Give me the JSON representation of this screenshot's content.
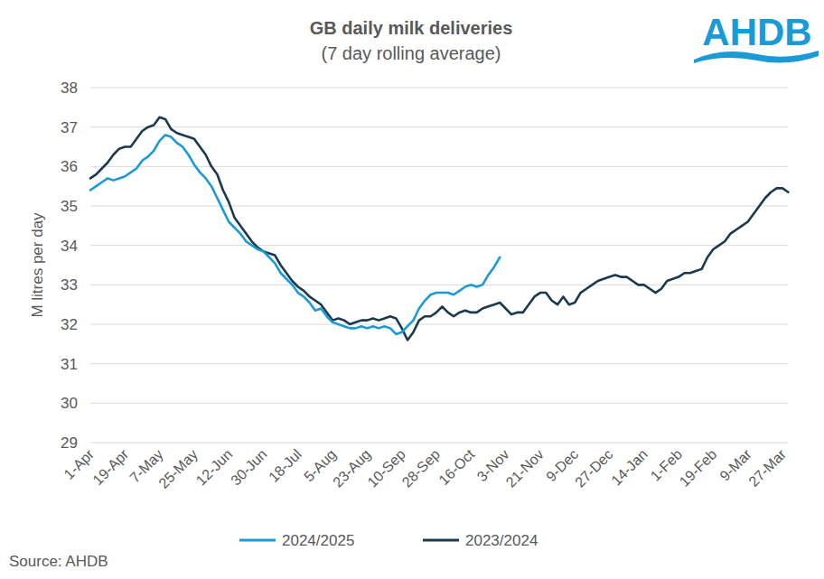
{
  "chart_data": {
    "type": "line",
    "title": "GB daily milk deliveries",
    "subtitle": "(7 day rolling average)",
    "y_label": "M litres per day",
    "source": "Source: AHDB",
    "logo": "AHDB",
    "categories": [
      "1-Apr",
      null,
      null,
      null,
      null,
      null,
      "19-Apr",
      null,
      null,
      null,
      null,
      null,
      "7-May",
      null,
      null,
      null,
      null,
      null,
      "25-May",
      null,
      null,
      null,
      null,
      null,
      "12-Jun",
      null,
      null,
      null,
      null,
      null,
      "30-Jun",
      null,
      null,
      null,
      null,
      null,
      "18-Jul",
      null,
      null,
      null,
      null,
      null,
      "5-Aug",
      null,
      null,
      null,
      null,
      null,
      "23-Aug",
      null,
      null,
      null,
      null,
      null,
      "10-Sep",
      null,
      null,
      null,
      null,
      null,
      "28-Sep",
      null,
      null,
      null,
      null,
      null,
      "16-Oct",
      null,
      null,
      null,
      null,
      null,
      "3-Nov",
      null,
      null,
      null,
      null,
      null,
      "21-Nov",
      null,
      null,
      null,
      null,
      null,
      "9-Dec",
      null,
      null,
      null,
      null,
      null,
      "27-Dec",
      null,
      null,
      null,
      null,
      null,
      "14-Jan",
      null,
      null,
      null,
      null,
      null,
      "1-Feb",
      null,
      null,
      null,
      null,
      null,
      "19-Feb",
      null,
      null,
      null,
      null,
      null,
      "9-Mar",
      null,
      null,
      null,
      null,
      null,
      "27-Mar",
      null
    ],
    "series": [
      {
        "name": "2024/2025",
        "color": "#1a9ad6",
        "values": [
          35.4,
          35.5,
          35.6,
          35.7,
          35.65,
          35.7,
          35.75,
          35.85,
          35.95,
          36.15,
          36.25,
          36.4,
          36.65,
          36.8,
          36.75,
          36.6,
          36.5,
          36.3,
          36.05,
          35.85,
          35.7,
          35.5,
          35.2,
          34.9,
          34.6,
          34.45,
          34.3,
          34.1,
          34.0,
          33.9,
          33.85,
          33.7,
          33.55,
          33.3,
          33.15,
          33.0,
          32.8,
          32.7,
          32.55,
          32.35,
          32.4,
          32.2,
          32.05,
          32.0,
          31.95,
          31.9,
          31.9,
          31.95,
          31.9,
          31.95,
          31.9,
          31.95,
          31.9,
          31.75,
          31.8,
          31.95,
          32.1,
          32.4,
          32.6,
          32.75,
          32.8,
          32.8,
          32.8,
          32.75,
          32.85,
          32.95,
          33.0,
          32.95,
          33.0,
          33.25,
          33.45,
          33.7,
          null,
          null,
          null,
          null,
          null,
          null,
          null,
          null,
          null,
          null,
          null,
          null,
          null,
          null,
          null,
          null,
          null,
          null,
          null,
          null,
          null,
          null,
          null,
          null,
          null,
          null,
          null,
          null,
          null,
          null,
          null,
          null,
          null,
          null,
          null,
          null,
          null,
          null,
          null,
          null,
          null,
          null,
          null,
          null,
          null,
          null,
          null,
          null,
          null,
          null
        ]
      },
      {
        "name": "2023/2024",
        "color": "#1b3a4e",
        "values": [
          35.7,
          35.8,
          35.95,
          36.1,
          36.3,
          36.45,
          36.5,
          36.5,
          36.7,
          36.9,
          37.0,
          37.05,
          37.25,
          37.2,
          36.95,
          36.85,
          36.8,
          36.75,
          36.7,
          36.5,
          36.3,
          36.0,
          35.8,
          35.4,
          35.1,
          34.7,
          34.5,
          34.3,
          34.1,
          33.95,
          33.85,
          33.8,
          33.75,
          33.5,
          33.3,
          33.1,
          32.95,
          32.85,
          32.7,
          32.6,
          32.5,
          32.3,
          32.1,
          32.15,
          32.1,
          32.0,
          32.05,
          32.1,
          32.1,
          32.15,
          32.1,
          32.15,
          32.2,
          32.15,
          31.9,
          31.6,
          31.8,
          32.1,
          32.2,
          32.2,
          32.3,
          32.45,
          32.3,
          32.2,
          32.3,
          32.35,
          32.3,
          32.3,
          32.4,
          32.45,
          32.5,
          32.55,
          32.4,
          32.25,
          32.3,
          32.3,
          32.5,
          32.7,
          32.8,
          32.8,
          32.6,
          32.5,
          32.7,
          32.5,
          32.55,
          32.8,
          32.9,
          33.0,
          33.1,
          33.15,
          33.2,
          33.25,
          33.2,
          33.2,
          33.1,
          33.0,
          33.0,
          32.9,
          32.8,
          32.9,
          33.1,
          33.15,
          33.2,
          33.3,
          33.3,
          33.35,
          33.4,
          33.7,
          33.9,
          34.0,
          34.1,
          34.3,
          34.4,
          34.5,
          34.6,
          34.8,
          35.0,
          35.2,
          35.35,
          35.45,
          35.45,
          35.35
        ]
      }
    ],
    "ylim": [
      29,
      38
    ],
    "yticks": [
      29,
      30,
      31,
      32,
      33,
      34,
      35,
      36,
      37,
      38
    ],
    "grid": true,
    "legend": "bottom"
  }
}
